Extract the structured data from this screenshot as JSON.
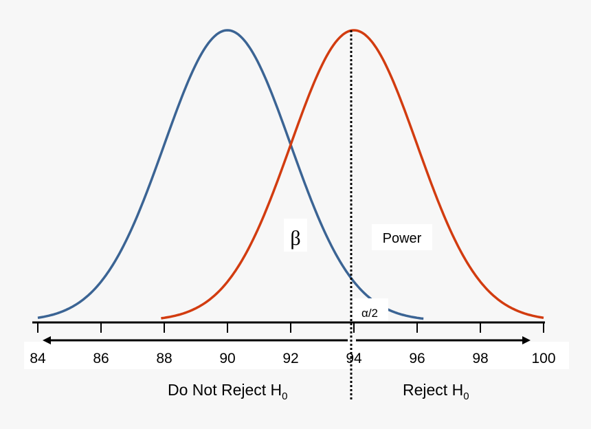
{
  "chart_data": {
    "type": "line",
    "xlim": [
      84,
      100
    ],
    "x_ticks": [
      "84",
      "86",
      "88",
      "90",
      "92",
      "94",
      "96",
      "98",
      "100"
    ],
    "grid": false,
    "series": [
      {
        "mean": 90,
        "sd": 2,
        "range": [
          84,
          96.2
        ],
        "color": "#3b6494"
      },
      {
        "mean": 94,
        "sd": 2,
        "range": [
          87.9,
          100
        ],
        "color": "#d23c10"
      }
    ],
    "critical_value": 94,
    "annotations": {
      "beta": "β",
      "power": "Power",
      "alpha": "α/2",
      "do_not_reject": "Do Not Reject H",
      "reject": "Reject H",
      "subscript": "0"
    }
  }
}
